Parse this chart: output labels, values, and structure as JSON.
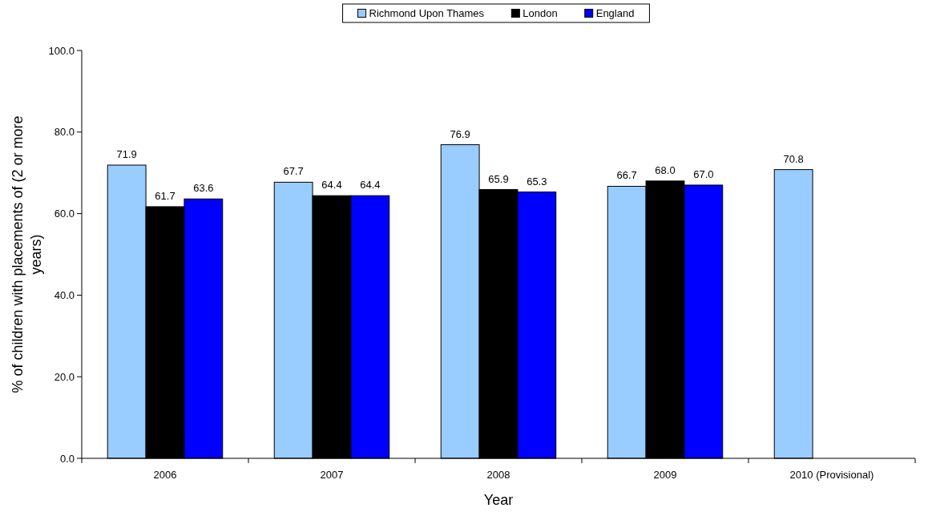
{
  "chart_data": {
    "type": "bar",
    "xlabel": "Year",
    "ylabel": "% of children with placements of (2 or more years)",
    "categories": [
      "2006",
      "2007",
      "2008",
      "2009",
      "2010 (Provisional)"
    ],
    "series": [
      {
        "name": "Richmond Upon Thames",
        "color": "#99ccff",
        "values": [
          71.9,
          67.7,
          76.9,
          66.7,
          70.8
        ],
        "value_labels": [
          "71.9",
          "67.7",
          "76.9",
          "66.7",
          "70.8"
        ]
      },
      {
        "name": "London",
        "color": "#000000",
        "values": [
          61.7,
          64.4,
          65.9,
          68.0,
          null
        ],
        "value_labels": [
          "61.7",
          "64.4",
          "65.9",
          "68.0",
          null
        ]
      },
      {
        "name": "England",
        "color": "#0000ff",
        "values": [
          63.6,
          64.4,
          65.3,
          67.0,
          null
        ],
        "value_labels": [
          "63.6",
          "64.4",
          "65.3",
          "67.0",
          null
        ]
      }
    ],
    "ylim": [
      0,
      100
    ],
    "yticks": [
      {
        "value": 0,
        "label": "0.0"
      },
      {
        "value": 20,
        "label": "20.0"
      },
      {
        "value": 40,
        "label": "40.0"
      },
      {
        "value": 60,
        "label": "60.0"
      },
      {
        "value": 80,
        "label": "80.0"
      },
      {
        "value": 100,
        "label": "100.0"
      }
    ],
    "grid": false,
    "legend": "top"
  }
}
